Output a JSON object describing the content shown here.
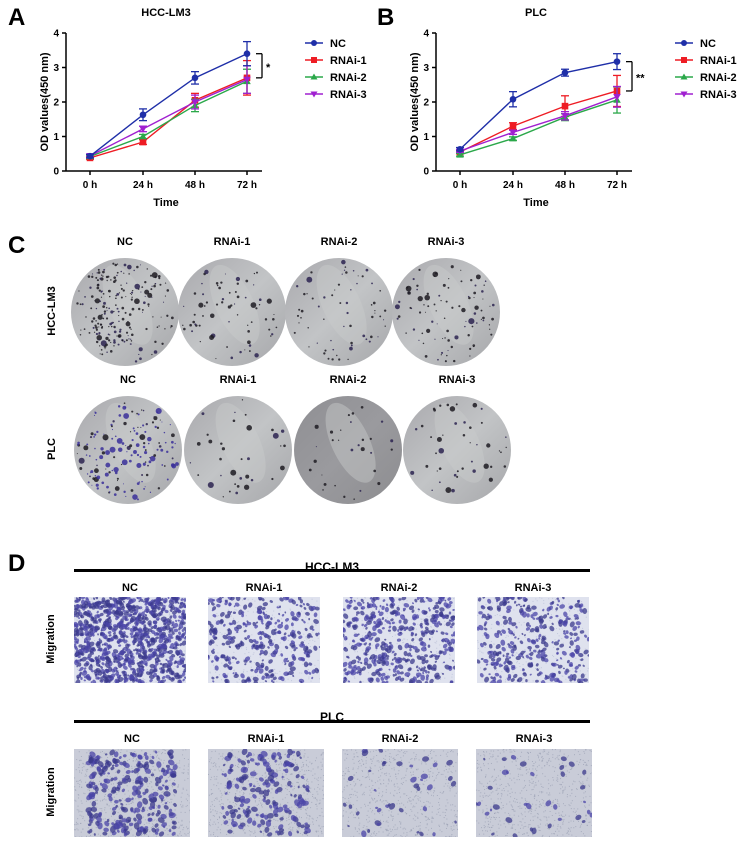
{
  "panels": {
    "A": {
      "letter": "A"
    },
    "B": {
      "letter": "B"
    },
    "C": {
      "letter": "C"
    },
    "D": {
      "letter": "D"
    }
  },
  "chart_data": [
    {
      "type": "line",
      "panel": "A",
      "title": "HCC-LM3",
      "xlabel": "Time",
      "ylabel": "OD values(450 nm)",
      "categories": [
        "0 h",
        "24 h",
        "48 h",
        "72 h"
      ],
      "ylim": [
        0,
        4
      ],
      "yticks": [
        0,
        1,
        2,
        3,
        4
      ],
      "legend_position": "right",
      "grid": false,
      "series": [
        {
          "name": "NC",
          "color": "#1f2fa8",
          "marker": "circle",
          "values": [
            0.43,
            1.63,
            2.7,
            3.4
          ],
          "errors": [
            0.05,
            0.17,
            0.18,
            0.35
          ]
        },
        {
          "name": "RNAi-1",
          "color": "#ee1c24",
          "marker": "square",
          "values": [
            0.38,
            0.84,
            2.05,
            2.7
          ],
          "errors": [
            0.04,
            0.07,
            0.2,
            0.5
          ]
        },
        {
          "name": "RNAi-2",
          "color": "#2ba84a",
          "marker": "triangle-up",
          "values": [
            0.42,
            1.0,
            1.9,
            2.6
          ],
          "errors": [
            0.04,
            0.06,
            0.18,
            0.35
          ]
        },
        {
          "name": "RNAi-3",
          "color": "#a020d0",
          "marker": "triangle-down",
          "values": [
            0.44,
            1.22,
            2.0,
            2.65
          ],
          "errors": [
            0.04,
            0.08,
            0.2,
            0.4
          ]
        }
      ],
      "annotations": [
        {
          "text": "*",
          "between": [
            "NC",
            "RNAi"
          ],
          "at": "72 h"
        }
      ]
    },
    {
      "type": "line",
      "panel": "B",
      "title": "PLC",
      "xlabel": "Time",
      "ylabel": "OD values(450 nm)",
      "categories": [
        "0 h",
        "24 h",
        "48 h",
        "72 h"
      ],
      "ylim": [
        0,
        4
      ],
      "yticks": [
        0,
        1,
        2,
        3,
        4
      ],
      "legend_position": "right",
      "grid": false,
      "series": [
        {
          "name": "NC",
          "color": "#1f2fa8",
          "marker": "circle",
          "values": [
            0.63,
            2.08,
            2.85,
            3.17
          ],
          "errors": [
            0.05,
            0.22,
            0.1,
            0.23
          ]
        },
        {
          "name": "RNAi-1",
          "color": "#ee1c24",
          "marker": "square",
          "values": [
            0.55,
            1.3,
            1.88,
            2.32
          ],
          "errors": [
            0.05,
            0.1,
            0.3,
            0.45
          ]
        },
        {
          "name": "RNAi-2",
          "color": "#2ba84a",
          "marker": "triangle-up",
          "values": [
            0.47,
            0.94,
            1.56,
            2.06
          ],
          "errors": [
            0.04,
            0.05,
            0.1,
            0.38
          ]
        },
        {
          "name": "RNAi-3",
          "color": "#a020d0",
          "marker": "triangle-down",
          "values": [
            0.58,
            1.12,
            1.6,
            2.15
          ],
          "errors": [
            0.04,
            0.06,
            0.12,
            0.3
          ]
        }
      ],
      "annotations": [
        {
          "text": "**",
          "between": [
            "NC",
            "RNAi"
          ],
          "at": "72 h"
        }
      ]
    }
  ],
  "colony": {
    "columns": [
      "NC",
      "RNAi-1",
      "RNAi-2",
      "RNAi-3"
    ],
    "rows": [
      {
        "label": "HCC-LM3",
        "colony_density": [
          220,
          70,
          65,
          95
        ]
      },
      {
        "label": "PLC",
        "colony_density": [
          160,
          35,
          30,
          45
        ]
      }
    ]
  },
  "migration": {
    "row_label": "Migration",
    "groups": [
      {
        "title": "HCC-LM3",
        "columns": [
          "NC",
          "RNAi-1",
          "RNAi-2",
          "RNAi-3"
        ],
        "cell_density": [
          900,
          320,
          420,
          320
        ]
      },
      {
        "title": "PLC",
        "columns": [
          "NC",
          "RNAi-1",
          "RNAi-2",
          "RNAi-3"
        ],
        "cell_density": [
          260,
          180,
          40,
          35
        ]
      }
    ]
  }
}
